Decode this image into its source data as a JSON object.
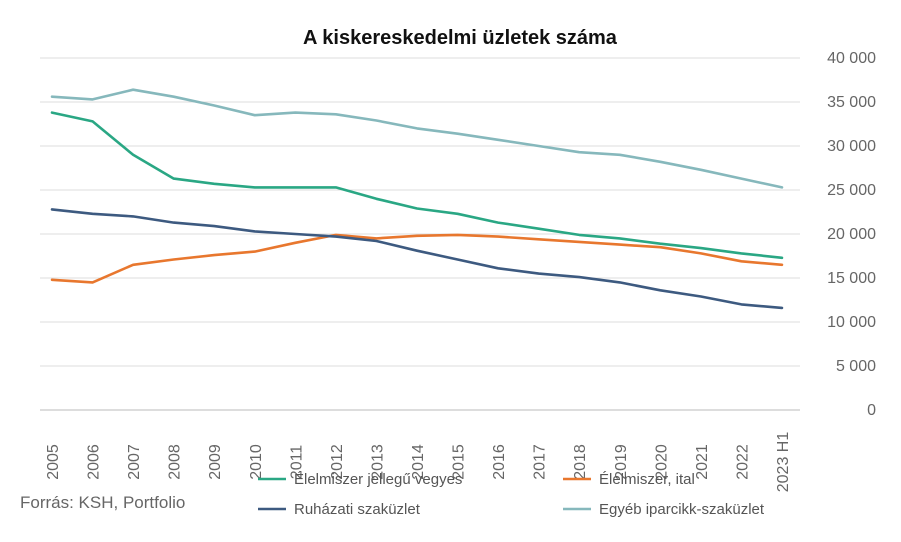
{
  "chart_data": {
    "type": "line",
    "title": "A kiskereskedelmi üzletek száma",
    "source": "Forrás: KSH, Portfolio",
    "categories": [
      "2005",
      "2006",
      "2007",
      "2008",
      "2009",
      "2010",
      "2011",
      "2012",
      "2013",
      "2014",
      "2015",
      "2016",
      "2017",
      "2018",
      "2019",
      "2020",
      "2021",
      "2022",
      "2023 H1"
    ],
    "ylim": [
      0,
      40000
    ],
    "yticks": [
      0,
      5000,
      10000,
      15000,
      20000,
      25000,
      30000,
      35000,
      40000
    ],
    "ytick_labels": [
      "0",
      "5 000",
      "10 000",
      "15 000",
      "20 000",
      "25 000",
      "30 000",
      "35 000",
      "40 000"
    ],
    "y_axis_position": "right",
    "grid": true,
    "legend_position": "bottom",
    "series": [
      {
        "name": "Élelmiszer jellegű vegyes",
        "color": "#2aa784",
        "values": [
          33800,
          32800,
          29000,
          26300,
          25700,
          25300,
          25300,
          25300,
          24000,
          22900,
          22300,
          21300,
          20600,
          19900,
          19500,
          18900,
          18400,
          17800,
          17300
        ]
      },
      {
        "name": "Élelmiszer, ital",
        "color": "#e8772e",
        "values": [
          14800,
          14500,
          16500,
          17100,
          17600,
          18000,
          19000,
          19900,
          19500,
          19800,
          19900,
          19700,
          19400,
          19100,
          18800,
          18500,
          17800,
          16900,
          16500
        ]
      },
      {
        "name": "Ruházati szaküzlet",
        "color": "#3d5a80",
        "values": [
          22800,
          22300,
          22000,
          21300,
          20900,
          20300,
          20000,
          19700,
          19200,
          18100,
          17100,
          16100,
          15500,
          15100,
          14500,
          13600,
          12900,
          12000,
          11600
        ]
      },
      {
        "name": "Egyéb iparcikk-szaküzlet",
        "color": "#86b8bc",
        "values": [
          35600,
          35300,
          36400,
          35600,
          34600,
          33500,
          33800,
          33600,
          32900,
          32000,
          31400,
          30700,
          30000,
          29300,
          29000,
          28200,
          27300,
          26300,
          25300
        ]
      }
    ]
  }
}
